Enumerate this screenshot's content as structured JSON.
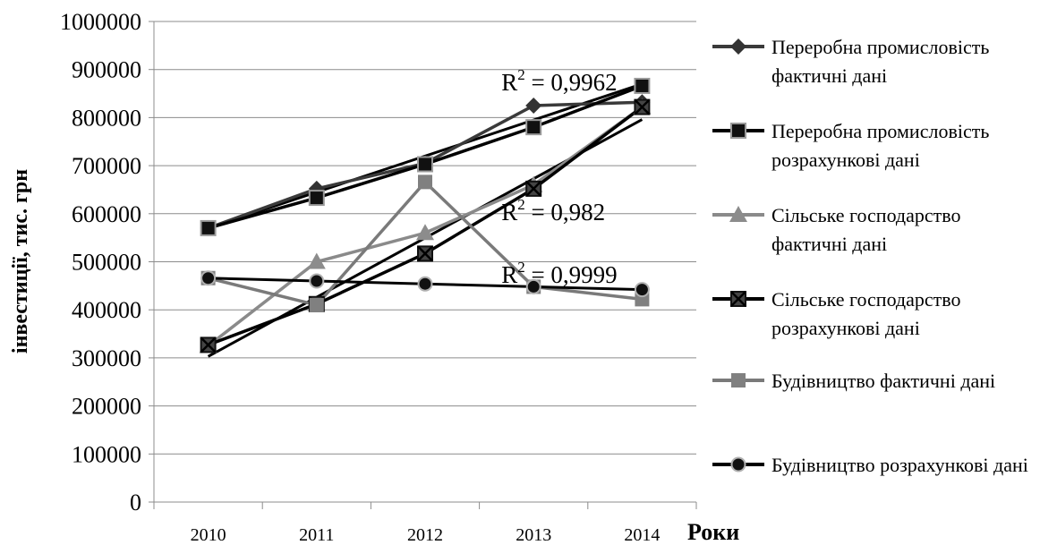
{
  "chart_data": {
    "type": "line",
    "categories": [
      "2010",
      "2011",
      "2012",
      "2013",
      "2014"
    ],
    "xlabel": "Роки",
    "ylabel": "інвестиції, тис. грн",
    "ylim": [
      0,
      1000000
    ],
    "yticks": [
      "0",
      "100000",
      "200000",
      "300000",
      "400000",
      "500000",
      "600000",
      "700000",
      "800000",
      "900000",
      "1000000"
    ],
    "grid": "horizontal",
    "legend_position": "right",
    "series": [
      {
        "name": "Переробна промисловість фактичні дані",
        "values": [
          570000,
          652000,
          705000,
          825000,
          832000
        ],
        "color": "#3a3a3a",
        "marker": "diamond"
      },
      {
        "name": "Переробна промисловість розрахункові дані",
        "values": [
          570000,
          633000,
          703000,
          780000,
          866000
        ],
        "color": "#000000",
        "marker": "square-dark"
      },
      {
        "name": "Сільське господарство фактичні дані",
        "values": [
          325000,
          500000,
          560000,
          660000,
          822000
        ],
        "color": "#8a8a8a",
        "marker": "triangle"
      },
      {
        "name": "Сільське господарство розрахункові дані",
        "values": [
          327000,
          412000,
          517000,
          652000,
          822000
        ],
        "color": "#000000",
        "marker": "square-x"
      },
      {
        "name": "Будівництво фактичні дані",
        "values": [
          466000,
          410000,
          666000,
          448000,
          422000
        ],
        "color": "#7a7a7a",
        "marker": "square-gray"
      },
      {
        "name": "Будівництво розрахункові дані",
        "values": [
          466000,
          460000,
          454000,
          448000,
          442000
        ],
        "color": "#000000",
        "marker": "circle"
      }
    ],
    "trendlines": [
      {
        "name": "Переробна промисловість",
        "values": [
          570000,
          634000,
          700000,
          785000,
          870000
        ]
      },
      {
        "name": "Сільське господарство",
        "values": [
          303000,
          420000,
          540000,
          660000,
          796000
        ]
      }
    ],
    "annotations": [
      {
        "text": "R",
        "sup": "2",
        "rest": " = 0,9962",
        "x": "2013",
        "y": 875000
      },
      {
        "text": "R",
        "sup": "2",
        "rest": " = 0,982",
        "x": "2013",
        "y": 605000
      },
      {
        "text": "R",
        "sup": "2",
        "rest": " = 0,9999",
        "x": "2013",
        "y": 475000
      }
    ]
  }
}
